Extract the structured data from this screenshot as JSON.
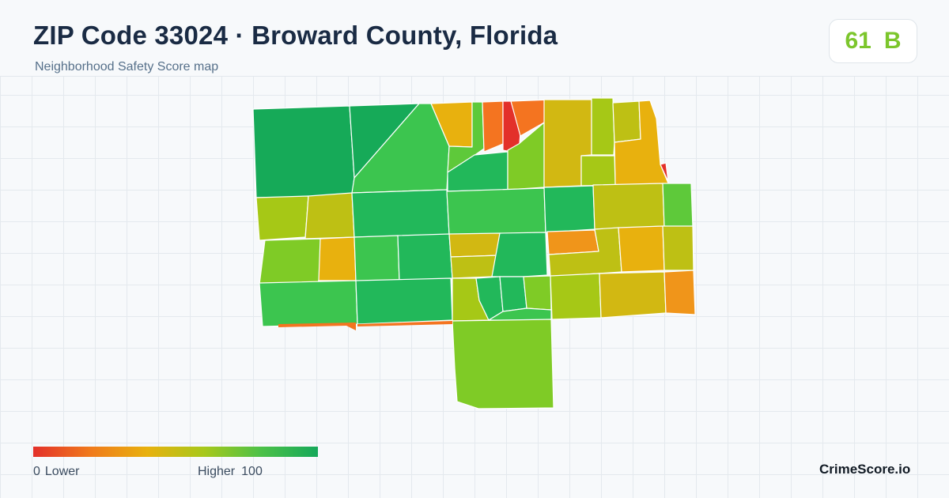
{
  "header": {
    "title": "ZIP Code 33024 · Broward County, Florida",
    "subtitle": "Neighborhood Safety Score map"
  },
  "score": {
    "value": "61",
    "grade": "B",
    "color": "#7cc62c"
  },
  "legend": {
    "min_value": "0",
    "min_label": "Lower",
    "max_label": "Higher",
    "max_value": "100",
    "colors": [
      "#e3302a",
      "#f07a1c",
      "#e8b10e",
      "#a7c81b",
      "#4cc148",
      "#16a85a"
    ]
  },
  "brand": "CrimeScore.io",
  "palette": {
    "red": "#e3302a",
    "orange": "#f47420",
    "orange_light": "#f0951a",
    "gold": "#e8b10e",
    "mustard": "#d2b812",
    "olive": "#bec014",
    "yellowgreen": "#a6c816",
    "lime": "#7fcb26",
    "lightgreen": "#5ec93a",
    "green": "#3cc54f",
    "midgreen": "#22b85a",
    "darkgreen": "#16aa58"
  }
}
